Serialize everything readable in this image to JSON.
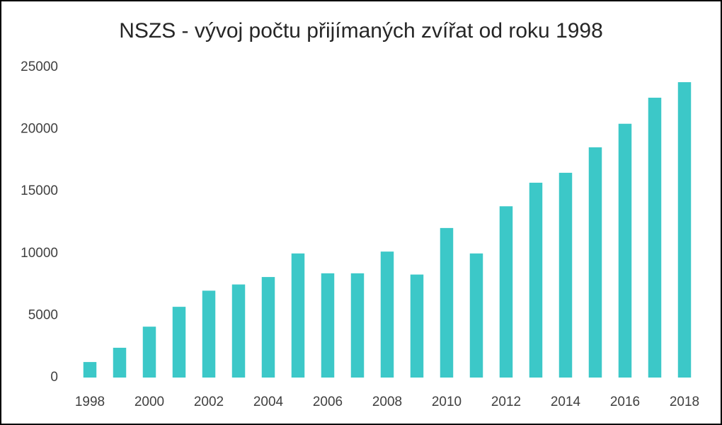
{
  "chart_data": {
    "type": "bar",
    "title": "NSZS - vývoj počtu přijímaných zvířat od roku 1998",
    "categories": [
      "1998",
      null,
      "2000",
      null,
      "2002",
      null,
      "2004",
      null,
      "2006",
      null,
      "2008",
      null,
      "2010",
      null,
      "2012",
      null,
      "2014",
      null,
      "2016",
      null,
      "2018"
    ],
    "values": [
      1250,
      2400,
      4100,
      5700,
      7000,
      7500,
      8100,
      10000,
      8400,
      8400,
      10150,
      8300,
      12050,
      10000,
      13800,
      15700,
      16500,
      18550,
      20450,
      22550,
      23800
    ],
    "color": "#3cc8c8",
    "ylim": [
      0,
      25000
    ],
    "yticks": [
      0,
      5000,
      10000,
      15000,
      20000,
      25000
    ],
    "grid": false
  }
}
